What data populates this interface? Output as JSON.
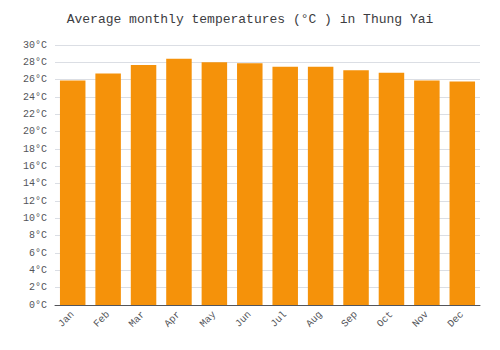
{
  "chart_data": {
    "type": "bar",
    "title": "Average monthly temperatures (°C ) in Thung Yai",
    "categories": [
      "Jan",
      "Feb",
      "Mar",
      "Apr",
      "May",
      "Jun",
      "Jul",
      "Aug",
      "Sep",
      "Oct",
      "Nov",
      "Dec"
    ],
    "values": [
      25.9,
      26.7,
      27.7,
      28.4,
      28.0,
      27.9,
      27.5,
      27.5,
      27.1,
      26.8,
      25.9,
      25.8
    ],
    "color": "#F5920A",
    "ylim": [
      0,
      30
    ],
    "yticks": [
      {
        "value": 0,
        "label": "0°C"
      },
      {
        "value": 2,
        "label": "2°C"
      },
      {
        "value": 4,
        "label": "4°C"
      },
      {
        "value": 6,
        "label": "6°C"
      },
      {
        "value": 8,
        "label": "8°C"
      },
      {
        "value": 10,
        "label": "10°C"
      },
      {
        "value": 12,
        "label": "12°C"
      },
      {
        "value": 14,
        "label": "14°C"
      },
      {
        "value": 16,
        "label": "16°C"
      },
      {
        "value": 18,
        "label": "18°C"
      },
      {
        "value": 20,
        "label": "20°C"
      },
      {
        "value": 22,
        "label": "22°C"
      },
      {
        "value": 24,
        "label": "24°C"
      },
      {
        "value": 26,
        "label": "26°C"
      },
      {
        "value": 28,
        "label": "28°C"
      },
      {
        "value": 30,
        "label": "30°C"
      }
    ],
    "grid": true
  }
}
